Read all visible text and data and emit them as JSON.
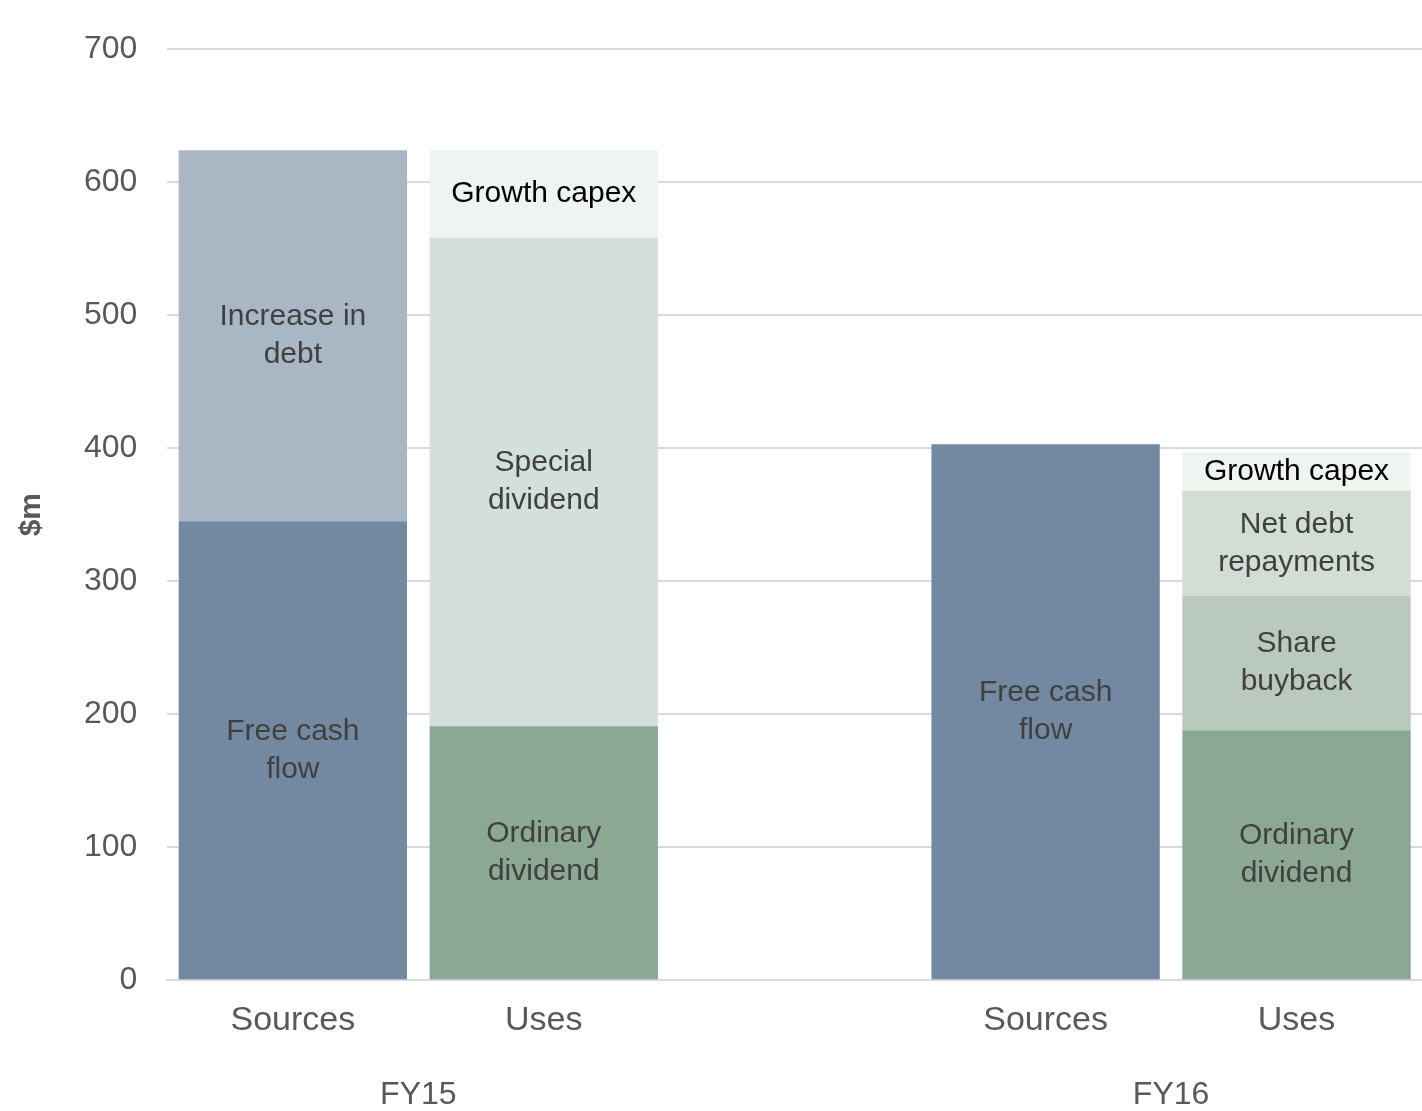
{
  "chart_data": {
    "type": "bar",
    "stacked": true,
    "ylabel": "$m",
    "categories": [
      "Sources",
      "Uses",
      null,
      "Sources",
      "Uses"
    ],
    "series": [
      {
        "name": "Free cash flow",
        "color": "#7389a2",
        "values": [
          345,
          null,
          null,
          403,
          null
        ]
      },
      {
        "name": "Ordinary dividend",
        "color": "#8ca893",
        "values": [
          null,
          191,
          null,
          null,
          188
        ]
      },
      {
        "name": "Increase in debt",
        "color": "#a9b6c4",
        "values": [
          279,
          null,
          null,
          null,
          null
        ]
      },
      {
        "name": "Special dividend",
        "color": "#d3e0da",
        "values": [
          null,
          367,
          null,
          null,
          null
        ]
      },
      {
        "name": "Share buyback",
        "color": "#bac9bd",
        "values": [
          null,
          null,
          null,
          null,
          101
        ]
      },
      {
        "name": "Net debt repayments",
        "color": "#d1ddd5",
        "values": [
          null,
          null,
          null,
          null,
          79
        ]
      },
      {
        "name": "Growth capex",
        "color": "#eff4f0",
        "values": [
          null,
          66,
          null,
          null,
          29
        ]
      }
    ],
    "ylim": [
      0,
      700
    ],
    "yticks": [
      0,
      100,
      200,
      300,
      400,
      500,
      600,
      700
    ],
    "grid": "y",
    "legend": false,
    "annotations": [
      "FY15",
      "FY16"
    ]
  }
}
